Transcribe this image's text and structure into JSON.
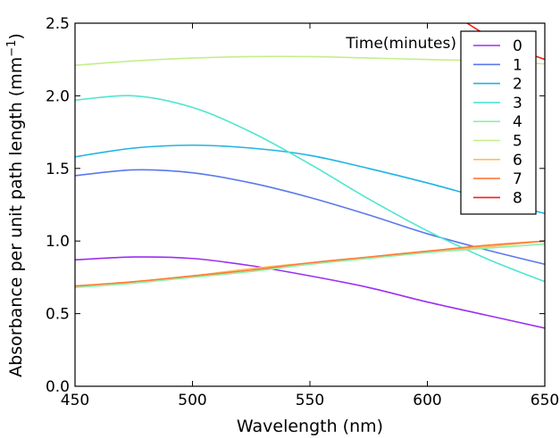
{
  "chart_data": {
    "type": "line",
    "title": "",
    "xlabel": "Wavelength (nm)",
    "ylabel_main": "Absorbance per unit path length (mm",
    "ylabel_sup": "−1",
    "ylabel_close": ")",
    "xlim": [
      450,
      650
    ],
    "ylim": [
      0.0,
      2.5
    ],
    "xticks": [
      450,
      500,
      550,
      600,
      650
    ],
    "xtick_labels": [
      "450",
      "500",
      "550",
      "600",
      "650"
    ],
    "yticks": [
      0.0,
      0.5,
      1.0,
      1.5,
      2.0,
      2.5
    ],
    "ytick_labels": [
      "0.0",
      "0.5",
      "1.0",
      "1.5",
      "2.0",
      "2.5"
    ],
    "grid": false,
    "legend": {
      "title": "Time(minutes)",
      "placement": "top-right"
    },
    "x": [
      450,
      475,
      500,
      525,
      550,
      575,
      600,
      625,
      650
    ],
    "series": [
      {
        "name": "0",
        "color": "#9b30f0",
        "values": [
          0.87,
          0.89,
          0.88,
          0.83,
          0.76,
          0.68,
          0.58,
          0.49,
          0.4
        ]
      },
      {
        "name": "1",
        "color": "#5a78ee",
        "values": [
          1.45,
          1.49,
          1.47,
          1.4,
          1.3,
          1.18,
          1.05,
          0.94,
          0.84
        ]
      },
      {
        "name": "2",
        "color": "#1fb4e4",
        "values": [
          1.58,
          1.64,
          1.66,
          1.64,
          1.59,
          1.5,
          1.4,
          1.29,
          1.19
        ]
      },
      {
        "name": "3",
        "color": "#4fe6d0",
        "values": [
          1.97,
          2.0,
          1.92,
          1.75,
          1.53,
          1.29,
          1.07,
          0.88,
          0.72
        ]
      },
      {
        "name": "4",
        "color": "#8ef0a8",
        "values": [
          0.68,
          0.71,
          0.75,
          0.79,
          0.84,
          0.88,
          0.92,
          0.95,
          0.98
        ]
      },
      {
        "name": "5",
        "color": "#c4ee8a",
        "values": [
          2.21,
          2.24,
          2.26,
          2.27,
          2.27,
          2.26,
          2.25,
          2.24,
          2.22
        ]
      },
      {
        "name": "6",
        "color": "#ffbe5c",
        "values": [
          0.69,
          0.72,
          0.76,
          0.81,
          0.85,
          0.89,
          0.93,
          0.96,
          1.0
        ]
      },
      {
        "name": "7",
        "color": "#ff7a3a",
        "values": [
          0.69,
          0.72,
          0.76,
          0.8,
          0.85,
          0.89,
          0.93,
          0.97,
          1.0
        ]
      },
      {
        "name": "8",
        "color": "#ff1a1a",
        "x": [
          615,
          625,
          635,
          650
        ],
        "values": [
          2.52,
          2.42,
          2.34,
          2.25
        ]
      }
    ]
  }
}
